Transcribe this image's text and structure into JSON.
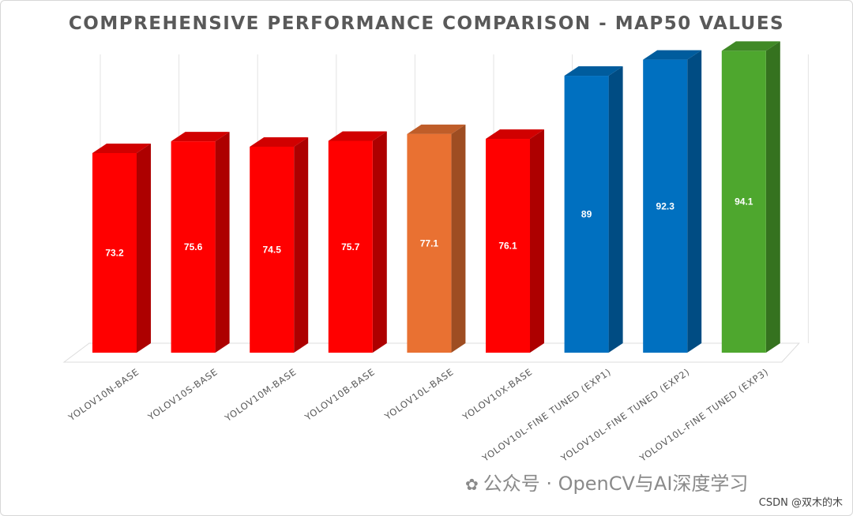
{
  "chart_data": {
    "type": "bar",
    "title": "COMPREHENSIVE PERFORMANCE COMPARISON - MAP50 VALUES",
    "categories": [
      "YOLOV10N-BASE",
      "YOLOV10S-BASE",
      "YOLOV10M-BASE",
      "YOLOV10B-BASE",
      "YOLOV10L-BASE",
      "YOLOV10X-BASE",
      "YOLOV10L-FINE TUNED (EXP1)",
      "YOLOV10L-FINE TUNED (EXP2)",
      "YOLOV10L-FINE TUNED (EXP3)"
    ],
    "values": [
      73.2,
      75.6,
      74.5,
      75.7,
      77.1,
      76.1,
      89,
      92.3,
      94.1
    ],
    "data_labels": [
      "73.2",
      "75.6",
      "74.5",
      "75.7",
      "77.1",
      "76.1",
      "89",
      "92.3",
      "94.1"
    ],
    "bar_colors": [
      "#ff0000",
      "#ff0000",
      "#ff0000",
      "#ff0000",
      "#e97132",
      "#ff0000",
      "#0070c0",
      "#0070c0",
      "#4ea72e"
    ],
    "xlabel": "",
    "ylabel": "",
    "ylim": [
      0,
      100
    ],
    "grid": true,
    "legend": "none"
  },
  "watermark": {
    "icon": "wechat-icon",
    "text": "公众号 · OpenCV与AI深度学习"
  },
  "credit": "CSDN @双木的木"
}
